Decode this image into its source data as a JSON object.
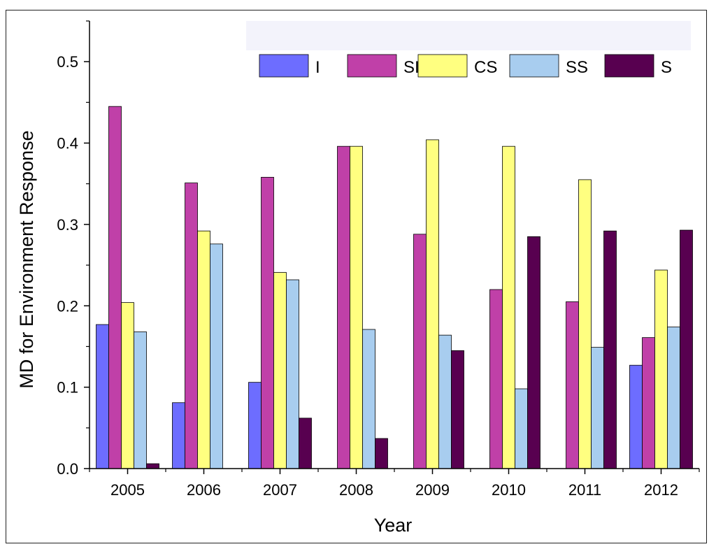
{
  "chart_data": {
    "type": "bar",
    "title": "",
    "xlabel": "Year",
    "ylabel": "MD for Environment Response",
    "ylim": [
      0,
      0.55
    ],
    "yticks": [
      "0.0",
      "0.1",
      "0.2",
      "0.3",
      "0.4",
      "0.5"
    ],
    "categories": [
      "2005",
      "2006",
      "2007",
      "2008",
      "2009",
      "2010",
      "2011",
      "2012"
    ],
    "series": [
      {
        "name": "I",
        "color": "#6d6dff",
        "values": [
          0.177,
          0.081,
          0.106,
          0,
          0,
          0,
          0,
          0.127
        ]
      },
      {
        "name": "SI",
        "color": "#c040a8",
        "values": [
          0.445,
          0.351,
          0.358,
          0.396,
          0.288,
          0.22,
          0.205,
          0.161
        ]
      },
      {
        "name": "CS",
        "color": "#ffff80",
        "values": [
          0.204,
          0.292,
          0.241,
          0.396,
          0.404,
          0.396,
          0.355,
          0.244
        ]
      },
      {
        "name": "SS",
        "color": "#a8cdef",
        "values": [
          0.168,
          0.276,
          0.232,
          0.171,
          0.164,
          0.098,
          0.149,
          0.174
        ]
      },
      {
        "name": "S",
        "color": "#580050",
        "values": [
          0.006,
          0,
          0.062,
          0.037,
          0.145,
          0.285,
          0.292,
          0.293
        ]
      }
    ],
    "legend_position": "top-right",
    "grid": false
  }
}
